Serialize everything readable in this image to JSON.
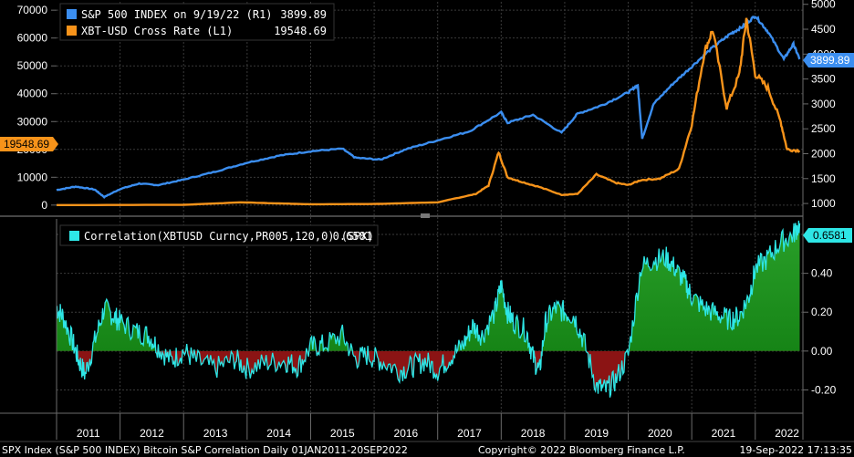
{
  "chart_data": [
    {
      "type": "line",
      "panel": "price",
      "legend": [
        {
          "label": "S&P 500 INDEX on 9/19/22 (R1)",
          "value": "3899.89",
          "color": "#3b8ef0"
        },
        {
          "label": "XBT-USD Cross Rate  (L1)",
          "value": "19548.69",
          "color": "#f7931a"
        }
      ],
      "left_axis": {
        "ticks": [
          "70000",
          "60000",
          "50000",
          "40000",
          "30000",
          "20000",
          "10000",
          "0"
        ],
        "tick_values": [
          70000,
          60000,
          50000,
          40000,
          30000,
          20000,
          10000,
          0
        ],
        "ylim": [
          -3000,
          73000
        ]
      },
      "right_axis": {
        "ticks": [
          "5000",
          "4500",
          "4000",
          "3500",
          "3000",
          "2500",
          "2000",
          "1500",
          "1000"
        ],
        "tick_values": [
          5000,
          4500,
          4000,
          3500,
          3000,
          2500,
          2000,
          1500,
          1000
        ],
        "ylim": [
          800,
          5050
        ]
      },
      "last_value_flags": {
        "left": "19548.69",
        "right": "3899.89"
      },
      "series": [
        {
          "name": "S&P 500 INDEX",
          "axis": "right",
          "color": "#3b8ef0",
          "x": [
            2011.0,
            2011.3,
            2011.6,
            2011.75,
            2012.0,
            2012.3,
            2012.6,
            2013.0,
            2013.5,
            2014.0,
            2014.5,
            2015.0,
            2015.5,
            2015.7,
            2016.1,
            2016.5,
            2017.0,
            2017.5,
            2018.0,
            2018.1,
            2018.5,
            2018.95,
            2019.2,
            2019.6,
            2020.0,
            2020.15,
            2020.22,
            2020.4,
            2020.7,
            2021.0,
            2021.3,
            2021.6,
            2021.8,
            2022.0,
            2022.2,
            2022.45,
            2022.6,
            2022.7
          ],
          "y": [
            1270,
            1340,
            1280,
            1130,
            1290,
            1400,
            1370,
            1480,
            1640,
            1820,
            1960,
            2050,
            2100,
            1920,
            1880,
            2090,
            2270,
            2450,
            2830,
            2620,
            2780,
            2420,
            2800,
            2980,
            3230,
            3380,
            2300,
            3000,
            3400,
            3750,
            4100,
            4400,
            4550,
            4770,
            4450,
            3900,
            4200,
            3900
          ]
        },
        {
          "name": "XBT-USD Cross Rate",
          "axis": "left",
          "color": "#f7931a",
          "x": [
            2011.0,
            2013.0,
            2013.9,
            2014.5,
            2015.0,
            2016.0,
            2016.5,
            2017.0,
            2017.3,
            2017.6,
            2017.8,
            2017.96,
            2018.1,
            2018.3,
            2018.6,
            2018.95,
            2019.2,
            2019.5,
            2019.8,
            2020.0,
            2020.2,
            2020.5,
            2020.8,
            2021.0,
            2021.2,
            2021.33,
            2021.55,
            2021.75,
            2021.86,
            2022.0,
            2022.2,
            2022.4,
            2022.5,
            2022.7
          ],
          "y": [
            0,
            100,
            1000,
            600,
            300,
            400,
            700,
            1000,
            2500,
            4000,
            7000,
            19000,
            10000,
            8500,
            6500,
            3700,
            4000,
            11000,
            8000,
            7200,
            9000,
            9500,
            13000,
            29000,
            55000,
            63000,
            35000,
            47000,
            67000,
            47000,
            42000,
            30000,
            20000,
            19548
          ]
        }
      ]
    },
    {
      "type": "area",
      "panel": "correlation",
      "legend": [
        {
          "label": "Correlation(XBTUSD Curncy,PR005,120,0) (SPX)",
          "value": "0.6581",
          "color": "#2ee6e6"
        }
      ],
      "right_axis": {
        "ticks": [
          "0.60",
          "0.40",
          "0.20",
          "0.00",
          "-0.20"
        ],
        "tick_values": [
          0.6,
          0.4,
          0.2,
          0.0,
          -0.2
        ],
        "ylim": [
          -0.32,
          0.68
        ]
      },
      "last_value_flags": {
        "right": "0.6581"
      },
      "series": [
        {
          "name": "Correlation(XBTUSD Curncy,PR005,120,0) (SPX)",
          "color": "#2ee6e6",
          "positive_fill": "#1f8c1f",
          "negative_fill": "#8b1414",
          "x": [
            2011.0,
            2011.1,
            2011.25,
            2011.35,
            2011.45,
            2011.6,
            2011.75,
            2011.9,
            2012.0,
            2012.25,
            2012.45,
            2012.6,
            2012.8,
            2013.0,
            2013.2,
            2013.5,
            2013.8,
            2014.0,
            2014.3,
            2014.6,
            2014.8,
            2015.0,
            2015.2,
            2015.5,
            2015.7,
            2015.9,
            2016.1,
            2016.4,
            2016.6,
            2016.8,
            2017.0,
            2017.2,
            2017.4,
            2017.55,
            2017.7,
            2017.9,
            2018.0,
            2018.1,
            2018.2,
            2018.4,
            2018.5,
            2018.6,
            2018.7,
            2018.85,
            2019.0,
            2019.15,
            2019.3,
            2019.5,
            2019.65,
            2019.8,
            2020.0,
            2020.2,
            2020.4,
            2020.6,
            2020.75,
            2020.9,
            2021.0,
            2021.2,
            2021.4,
            2021.6,
            2021.75,
            2021.9,
            2022.0,
            2022.2,
            2022.4,
            2022.6,
            2022.7
          ],
          "y": [
            0.22,
            0.18,
            0.05,
            -0.05,
            -0.12,
            0.05,
            0.22,
            0.18,
            0.15,
            0.1,
            0.08,
            0.02,
            -0.05,
            0.0,
            -0.05,
            -0.09,
            -0.04,
            -0.09,
            -0.06,
            -0.05,
            -0.08,
            0.02,
            0.03,
            0.08,
            -0.04,
            -0.02,
            -0.05,
            -0.1,
            -0.08,
            -0.05,
            -0.1,
            -0.03,
            0.03,
            0.13,
            0.08,
            0.2,
            0.34,
            0.2,
            0.15,
            0.1,
            -0.03,
            -0.11,
            0.15,
            0.22,
            0.2,
            0.18,
            0.05,
            -0.18,
            -0.2,
            -0.15,
            -0.02,
            0.43,
            0.47,
            0.48,
            0.42,
            0.35,
            0.28,
            0.22,
            0.19,
            0.16,
            0.18,
            0.28,
            0.42,
            0.48,
            0.56,
            0.6,
            0.6581
          ]
        }
      ],
      "x_axis": {
        "labels": [
          "2011",
          "2012",
          "2013",
          "2014",
          "2015",
          "2016",
          "2017",
          "2018",
          "2019",
          "2020",
          "2021",
          "2022"
        ],
        "range": [
          2011.0,
          2022.75
        ]
      }
    }
  ],
  "footer": {
    "left": "SPX Index (S&P 500 INDEX) Bitcoin S&P Correlation  Daily 01JAN2011-20SEP2022",
    "center": "Copyright© 2022 Bloomberg Finance L.P.",
    "right": "19-Sep-2022 17:13:35"
  },
  "colors": {
    "background": "#000000",
    "grid": "#3a3a3a",
    "axis": "#6b6b6b"
  }
}
